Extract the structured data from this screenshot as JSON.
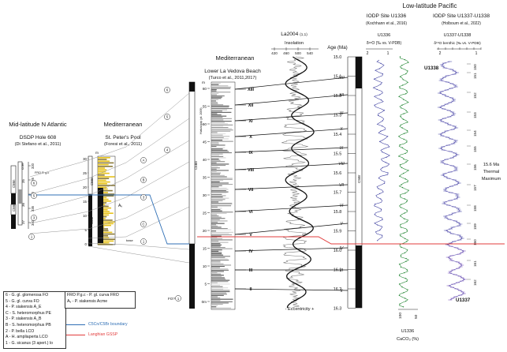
{
  "header": {
    "atlantic_title": "Mid-latitude N Atlantic",
    "med1_title": "Mediterranean",
    "med2_title": "Mediterranean",
    "pacific_title": "Low-latitude Pacific"
  },
  "dsdp": {
    "title": "DSDP Hole 608",
    "ref": "(Di Stefano et al., 2011)",
    "core_label": "core",
    "chron_labels": [
      "C5Bn",
      "C5Br",
      "C5Cn"
    ],
    "core_numbers": [
      "35",
      "36",
      "37"
    ],
    "depth_ticks": [
      "320",
      "325",
      "330",
      "335",
      "340"
    ],
    "fo_text": "FRO P. g.c"
  },
  "stpeter": {
    "title": "St. Peter's Pool",
    "ref": "(Foresi et al., 2011)",
    "unit": "m",
    "depth_ticks": [
      "30",
      "25",
      "20",
      "15",
      "10",
      "5",
      "0"
    ],
    "chron_labels": [
      "C5Bn",
      "C5Br"
    ],
    "acme_label": "Aᵥ",
    "base_label": "base"
  },
  "vedova": {
    "title": "Lower La Vedova Beach",
    "ref": "(Turco et al., 2011,2017)",
    "unit": "m",
    "depth_ticks": [
      "60",
      "55",
      "50",
      "45",
      "40",
      "35",
      "30",
      "25",
      "20",
      "15",
      "10",
      "5",
      "0m"
    ],
    "member_labels": [
      "Hiatus/gap (pt. 2009)",
      "C5Bn"
    ],
    "cycle_labels": [
      "XIII",
      "XII",
      "XI",
      "X",
      "IX",
      "VIII",
      "VII",
      "VI",
      "V",
      "IV",
      "III",
      "II"
    ],
    "fo_label": "FO?",
    "fo_num": "1"
  },
  "la2004": {
    "title": "La2004",
    "title_suffix": "(1,1)",
    "subtitle": "Insolation",
    "ticks": [
      "420",
      "460",
      "500",
      "540"
    ],
    "eccentricity_label": "- Eccentricity +"
  },
  "age": {
    "title": "Age (Ma)",
    "ticks": [
      "15.0",
      "15.1",
      "15.2",
      "15.3",
      "15.4",
      "15.5",
      "15.6",
      "15.7",
      "15.8",
      "15.9",
      "16.0",
      "16.1",
      "16.2",
      "16.3"
    ],
    "cycle_labels": [
      "XIII",
      "XII",
      "XI",
      "X",
      "IX",
      "VIII",
      "VII",
      "VI",
      "V",
      "IV",
      "III",
      "II"
    ],
    "chron_label": "C5Br"
  },
  "u1336": {
    "site_title": "IODP Site U1336",
    "ref": "(Kochhann et al., 2016)",
    "name": "U1336",
    "isotope_label": "δ¹⁸O (‰ vs. V-PDB)",
    "top_ticks": [
      "2",
      "1"
    ],
    "caco3_label": "U1336",
    "caco3_unit": "CaCO₃ (%)",
    "caco3_ticks": [
      "100",
      "50"
    ]
  },
  "u1337": {
    "site_title": "IODP Site U1337-U1338",
    "ref": "(Holbourn et al., 2022)",
    "name": "U1337-U1338",
    "isotope_label": "δ¹⁸O benthic (‰ vs. V-PDB)",
    "top_ticks": [
      "2",
      "1"
    ],
    "label_u1338": "U1338",
    "label_u1337": "U1337",
    "cycle_numbers": [
      "150",
      "151",
      "152",
      "153",
      "154",
      "155",
      "156",
      "157",
      "158",
      "159",
      "160",
      "161",
      "162"
    ],
    "thermal_max": [
      "15.6 Ma",
      "Thermal",
      "Maximum"
    ]
  },
  "legend_biozones": [
    "6 - G. gl. glomerosa FO",
    "5 - G. gl. curva FO",
    "4 - P. siakensis A_E",
    "C - S. heteromorphus PE",
    "3 - P. siakensis A_B",
    "B - S. heteromorphus PB",
    "2 - P. bella LCO",
    "A - H. ampliaperta LCO",
    "1 - G. sicanus (3 apert.) lo"
  ],
  "legend_notes": [
    "FRO P.g.c - P. gl. curva FRO",
    "Aᵥ - P. siakensis Acme"
  ],
  "legend_lines": [
    {
      "label": "C5Cn/C5Br boundary",
      "color": "#2f6fb5"
    },
    {
      "label": "Langhian GSSP",
      "color": "#e23c3c"
    }
  ],
  "colors": {
    "boundary_blue": "#2f6fb5",
    "gssp_red": "#e23c3c",
    "u1336_blue": "#3d3fa0",
    "caco3_green": "#2a8a3a",
    "u1337_purple": "#6a3fb0",
    "yellow_beds": "#e7c21a"
  }
}
